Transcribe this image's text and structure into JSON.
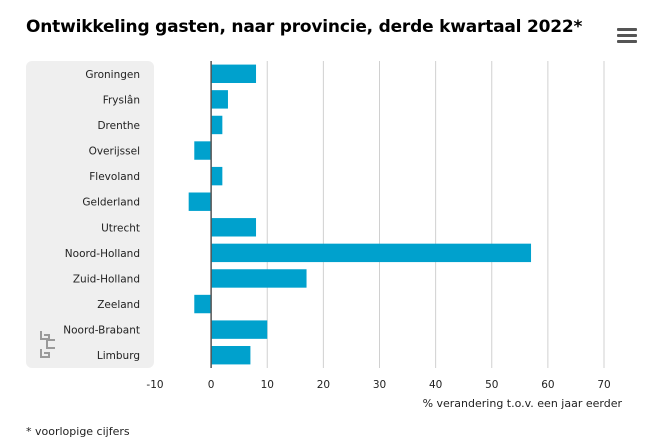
{
  "title": "Ontwikkeling gasten, naar provincie, derde kwartaal 2022*",
  "menu": {
    "icon": "hamburger-menu-icon"
  },
  "footnote": "* voorlopige cijfers",
  "colors": {
    "bar": "#00a1cd",
    "plot_bg": "#efefef",
    "grid": "#d0d0d0",
    "zero_line": "#555555"
  },
  "chart_data": {
    "type": "bar",
    "orientation": "horizontal",
    "categories": [
      "Groningen",
      "Fryslân",
      "Drenthe",
      "Overijssel",
      "Flevoland",
      "Gelderland",
      "Utrecht",
      "Noord-Holland",
      "Zuid-Holland",
      "Zeeland",
      "Noord-Brabant",
      "Limburg"
    ],
    "values": [
      8,
      3,
      2,
      -3,
      2,
      -4,
      8,
      57,
      17,
      -3,
      10,
      7
    ],
    "xlabel": "% verandering t.o.v. een jaar eerder",
    "ylabel": "",
    "xlim": [
      -10,
      70
    ],
    "xticks": [
      "-10",
      "0",
      "10",
      "20",
      "30",
      "40",
      "50",
      "60",
      "70"
    ],
    "grid": true
  }
}
